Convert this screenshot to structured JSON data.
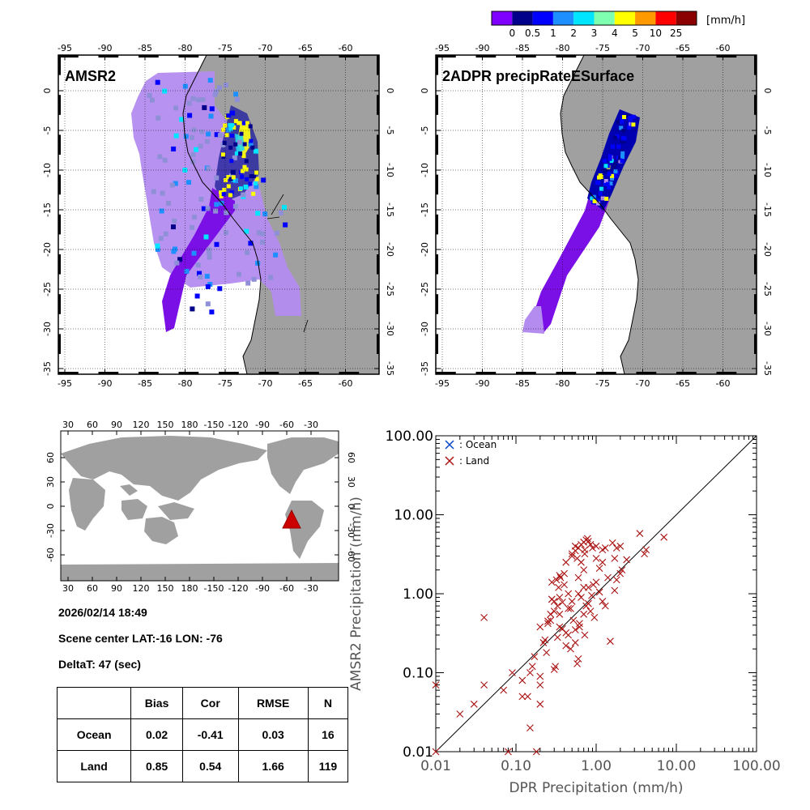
{
  "colorbar": {
    "unit": "[mm/h]",
    "labels": [
      "0",
      "0.5",
      "1",
      "2",
      "3",
      "4",
      "5",
      "10",
      "25"
    ],
    "colors": [
      "#7f00ff",
      "#00008b",
      "#0000ff",
      "#1e8fff",
      "#00e5ff",
      "#7fffb0",
      "#ffff00",
      "#ff9900",
      "#ff0000",
      "#8b0000"
    ]
  },
  "maps": {
    "lon_ticks": [
      "-95",
      "-90",
      "-85",
      "-80",
      "-75",
      "-70",
      "-65",
      "-60"
    ],
    "lat_ticks": [
      "0",
      "-5",
      "-10",
      "-15",
      "-20",
      "-25",
      "-30",
      "-35"
    ],
    "left_title": "AMSR2",
    "right_title": "2ADPR precipRateESurface",
    "land_color": "#a0a0a0"
  },
  "world": {
    "top_ticks": [
      "30",
      "60",
      "90",
      "120",
      "150",
      "180",
      "-150",
      "-120",
      "-90",
      "-60",
      "-30"
    ],
    "lat_ticks": [
      "60",
      "30",
      "0",
      "-30",
      "-60"
    ],
    "marker_color": "#cc0000"
  },
  "info": {
    "datetime": "2026/02/14 18:49",
    "center": "Scene center LAT:-16   LON: -76",
    "deltat": "DeltaT:   47 (sec)"
  },
  "stats": {
    "headers": [
      "",
      "Bias",
      "Cor",
      "RMSE",
      "N"
    ],
    "rows": [
      [
        "Ocean",
        "0.02",
        "-0.41",
        "0.03",
        "16"
      ],
      [
        "Land",
        "0.85",
        "0.54",
        "1.66",
        "119"
      ]
    ]
  },
  "chart_data": {
    "type": "scatter",
    "xlabel": "DPR Precipitation (mm/h)",
    "ylabel": "AMSR2 Precipitation (mm/h)",
    "xscale": "log",
    "yscale": "log",
    "xlim": [
      0.01,
      100
    ],
    "ylim": [
      0.01,
      100
    ],
    "tick_labels": [
      "0.01",
      "0.10",
      "1.00",
      "10.00",
      "100.00"
    ],
    "legend": [
      {
        "name": ": Ocean",
        "color": "#0044cc"
      },
      {
        "name": ": Land",
        "color": "#aa1111"
      }
    ],
    "legend_position": "top-left",
    "series": [
      {
        "name": "Land",
        "points": [
          [
            0.01,
            0.07
          ],
          [
            0.01,
            0.01
          ],
          [
            0.02,
            0.03
          ],
          [
            0.03,
            0.04
          ],
          [
            0.04,
            0.07
          ],
          [
            0.04,
            0.5
          ],
          [
            0.07,
            0.06
          ],
          [
            0.08,
            0.01
          ],
          [
            0.09,
            0.1
          ],
          [
            0.12,
            0.08
          ],
          [
            0.14,
            0.05
          ],
          [
            0.15,
            0.1
          ],
          [
            0.16,
            0.12
          ],
          [
            0.17,
            0.16
          ],
          [
            0.18,
            0.01
          ],
          [
            0.2,
            0.04
          ],
          [
            0.2,
            0.07
          ],
          [
            0.22,
            0.24
          ],
          [
            0.23,
            0.26
          ],
          [
            0.24,
            0.18
          ],
          [
            0.25,
            0.45
          ],
          [
            0.27,
            0.55
          ],
          [
            0.28,
            0.85
          ],
          [
            0.3,
            0.11
          ],
          [
            0.31,
            0.12
          ],
          [
            0.33,
            0.28
          ],
          [
            0.35,
            0.38
          ],
          [
            0.38,
            0.36
          ],
          [
            0.42,
            0.22
          ],
          [
            0.45,
            0.3
          ],
          [
            0.48,
            0.2
          ],
          [
            0.55,
            0.35
          ],
          [
            0.58,
            0.13
          ],
          [
            0.6,
            0.15
          ],
          [
            0.62,
            0.42
          ],
          [
            0.7,
            0.55
          ],
          [
            0.75,
            0.7
          ],
          [
            0.8,
            0.75
          ],
          [
            0.95,
            0.5
          ],
          [
            1.1,
            1.05
          ],
          [
            1.2,
            0.8
          ],
          [
            1.3,
            0.7
          ],
          [
            1.5,
            0.25
          ],
          [
            1.7,
            1.1
          ],
          [
            1.8,
            1.5
          ],
          [
            2.1,
            2.0
          ],
          [
            2.4,
            2.7
          ],
          [
            0.3,
            0.8
          ],
          [
            0.35,
            0.9
          ],
          [
            0.5,
            0.8
          ],
          [
            0.45,
            1.0
          ],
          [
            0.6,
            1.0
          ],
          [
            0.8,
            1.2
          ],
          [
            1.0,
            1.4
          ],
          [
            0.32,
            1.5
          ],
          [
            0.35,
            1.7
          ],
          [
            0.4,
            1.8
          ],
          [
            0.42,
            2.5
          ],
          [
            0.5,
            3.0
          ],
          [
            0.55,
            3.5
          ],
          [
            0.55,
            4.0
          ],
          [
            0.6,
            3.8
          ],
          [
            0.65,
            4.2
          ],
          [
            0.7,
            4.5
          ],
          [
            0.72,
            3.6
          ],
          [
            0.75,
            4.8
          ],
          [
            0.78,
            5.0
          ],
          [
            0.8,
            4.6
          ],
          [
            0.85,
            4.2
          ],
          [
            0.9,
            3.8
          ],
          [
            1.0,
            4.0
          ],
          [
            1.2,
            3.6
          ],
          [
            1.3,
            3.8
          ],
          [
            1.6,
            4.4
          ],
          [
            1.8,
            3.8
          ],
          [
            2.0,
            4.0
          ],
          [
            0.58,
            2.8
          ],
          [
            0.65,
            2.5
          ],
          [
            0.7,
            2.0
          ],
          [
            0.72,
            3.2
          ],
          [
            1.0,
            2.8
          ],
          [
            1.2,
            2.5
          ],
          [
            1.7,
            2.8
          ],
          [
            2.0,
            1.8
          ],
          [
            0.28,
            1.4
          ],
          [
            0.34,
            1.2
          ],
          [
            0.4,
            1.3
          ],
          [
            0.6,
            1.6
          ],
          [
            0.28,
            0.85
          ],
          [
            0.33,
            0.7
          ],
          [
            0.48,
            0.65
          ],
          [
            0.36,
            1.6
          ],
          [
            0.5,
            3.2
          ],
          [
            3.5,
            5.8
          ],
          [
            4.0,
            3.2
          ],
          [
            4.2,
            3.6
          ],
          [
            7.0,
            5.2
          ],
          [
            0.2,
            0.38
          ],
          [
            0.25,
            0.42
          ],
          [
            0.35,
            0.55
          ],
          [
            0.45,
            0.65
          ],
          [
            0.15,
            0.02
          ],
          [
            0.12,
            0.05
          ],
          [
            0.27,
            0.46
          ],
          [
            0.38,
            0.78
          ],
          [
            0.65,
            0.9
          ],
          [
            0.88,
            0.95
          ],
          [
            0.42,
            0.32
          ],
          [
            0.52,
            0.46
          ],
          [
            0.62,
            0.38
          ],
          [
            0.7,
            1.2
          ],
          [
            0.92,
            1.3
          ],
          [
            1.1,
            2.1
          ],
          [
            1.4,
            1.6
          ],
          [
            0.55,
            0.24
          ],
          [
            0.72,
            0.3
          ],
          [
            0.85,
            0.6
          ],
          [
            0.3,
            0.6
          ],
          [
            0.2,
            0.09
          ]
        ]
      },
      {
        "name": "Ocean",
        "points": []
      }
    ]
  }
}
